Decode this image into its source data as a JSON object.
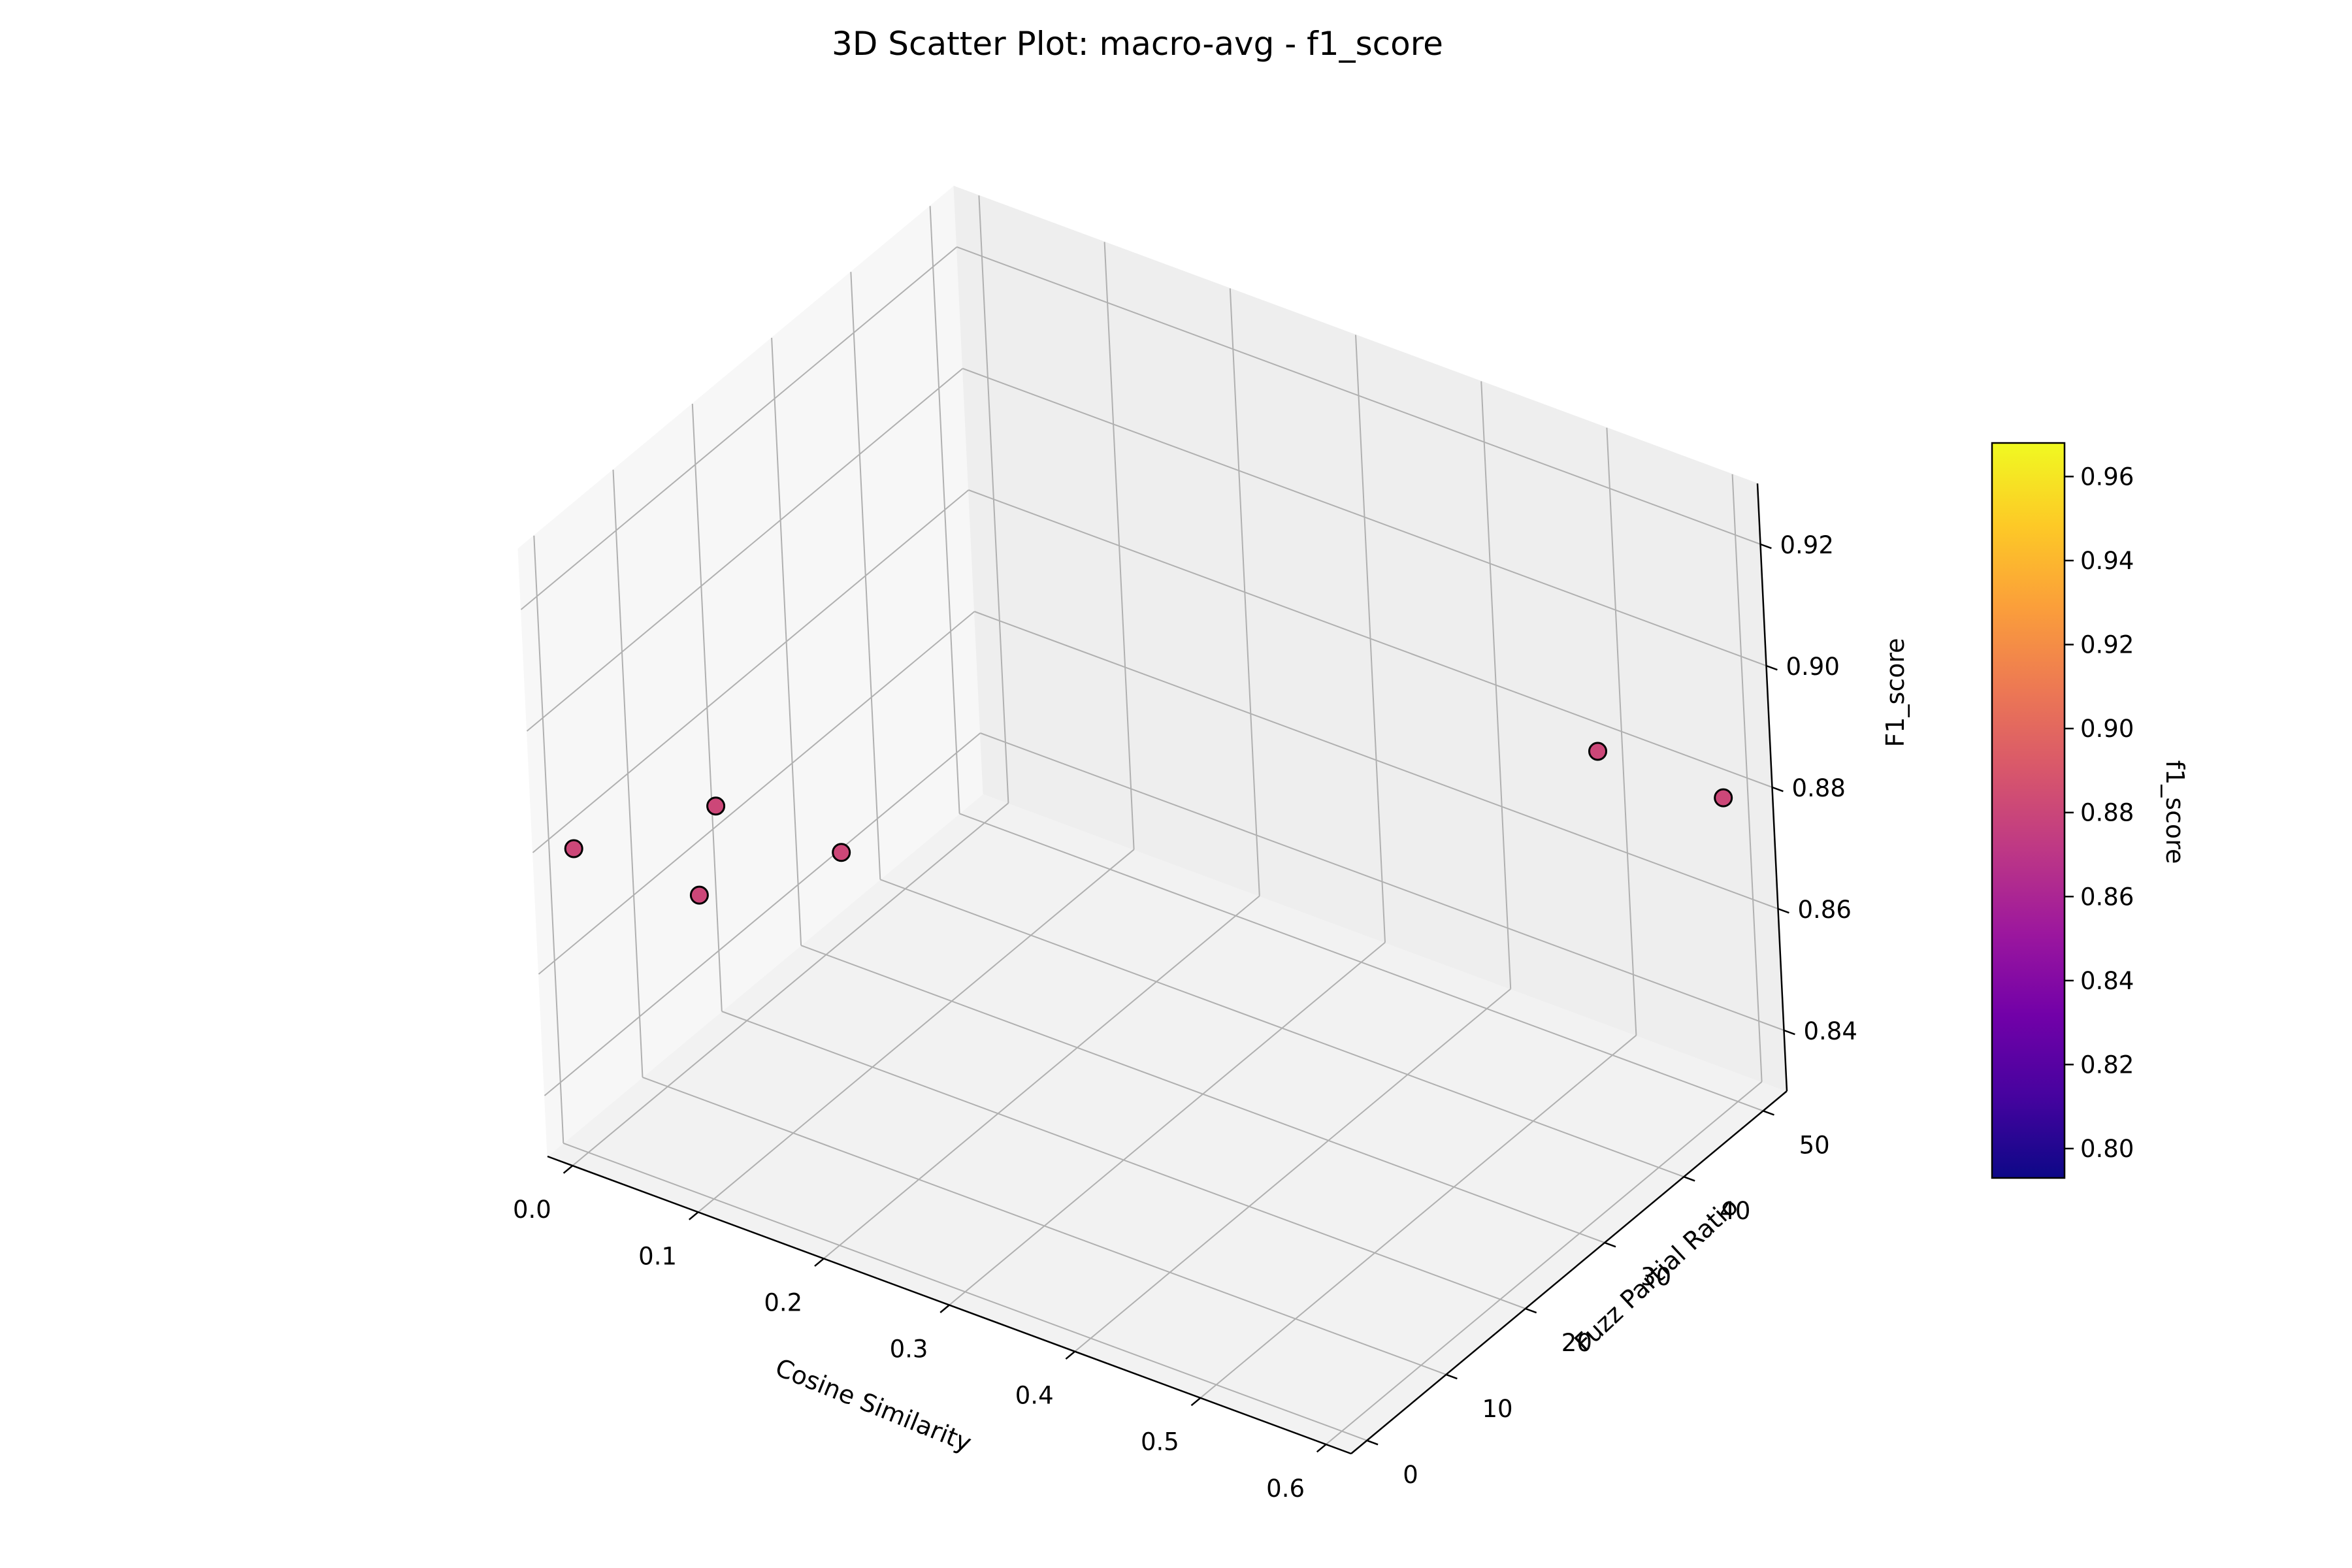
{
  "chart_data": {
    "type": "scatter",
    "title": "3D Scatter Plot: macro-avg - f1_score",
    "xlabel": "Cosine Similarity",
    "ylabel": "Fuzz Partial Ratio",
    "zlabel": "F1_score",
    "x_ticks": [
      "0.0",
      "0.1",
      "0.2",
      "0.3",
      "0.4",
      "0.5",
      "0.6"
    ],
    "y_ticks": [
      "0",
      "10",
      "20",
      "30",
      "40",
      "50"
    ],
    "z_ticks": [
      "0.84",
      "0.86",
      "0.88",
      "0.90",
      "0.92"
    ],
    "xlim": [
      -0.02,
      0.62
    ],
    "ylim": [
      -2,
      53
    ],
    "zlim": [
      0.83,
      0.93
    ],
    "grid": true,
    "colormap": "plasma",
    "marker_edge_color": "#000000",
    "points": [
      {
        "x": 0.0,
        "y": 0,
        "z": 0.88,
        "color": "#cc4778"
      },
      {
        "x": 0.05,
        "y": 10,
        "z": 0.88,
        "color": "#cc4778"
      },
      {
        "x": 0.1,
        "y": 0,
        "z": 0.88,
        "color": "#cc4778"
      },
      {
        "x": 0.15,
        "y": 10,
        "z": 0.88,
        "color": "#cc4778"
      },
      {
        "x": 0.5,
        "y": 50,
        "z": 0.88,
        "color": "#cc4778"
      },
      {
        "x": 0.6,
        "y": 50,
        "z": 0.88,
        "color": "#cc4778"
      }
    ],
    "colorbar": {
      "label": "f1_score",
      "ticks": [
        "0.80",
        "0.82",
        "0.84",
        "0.86",
        "0.88",
        "0.90",
        "0.92",
        "0.94",
        "0.96"
      ],
      "range": [
        0.793,
        0.968
      ],
      "colors": [
        "#0d0887",
        "#46039f",
        "#7201a8",
        "#9c179e",
        "#bd3786",
        "#d8576b",
        "#ed7953",
        "#fb9f3a",
        "#fdca26",
        "#f0f921"
      ]
    }
  }
}
